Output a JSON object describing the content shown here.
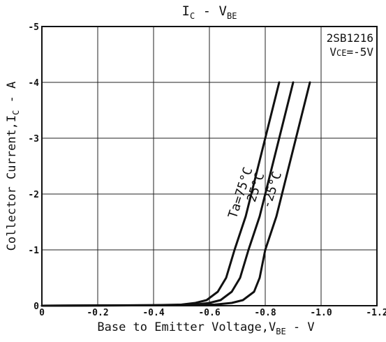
{
  "chart_data": {
    "type": "line",
    "title": {
      "main": "I",
      "sub1": "C",
      "mid": " - V",
      "sub2": "BE"
    },
    "xlabel": {
      "main": "Base to Emitter Voltage,V",
      "sub": "BE",
      "unit": " - V"
    },
    "ylabel": {
      "main": "Collector Current,I",
      "sub": "C",
      "unit": " - A"
    },
    "xlim": [
      0,
      -1.2
    ],
    "ylim": [
      0,
      -5
    ],
    "xticks": [
      0,
      -0.2,
      -0.4,
      -0.6,
      -0.8,
      -1.0,
      -1.2
    ],
    "xtick_labels": [
      "0",
      "-0.2",
      "-0.4",
      "-0.6",
      "-0.8",
      "-1.0",
      "-1.2"
    ],
    "yticks": [
      0,
      -1,
      -2,
      -3,
      -4,
      -5
    ],
    "ytick_labels": [
      "0",
      "-1",
      "-2",
      "-3",
      "-4",
      "-5"
    ],
    "grid": true,
    "annotation": {
      "line1": "2SB1216",
      "line2_main": "V",
      "line2_sub": "CE",
      "line2_rest": "=-5V"
    },
    "series": [
      {
        "name": "Ta=75°C",
        "x": [
          0,
          -0.4,
          -0.5,
          -0.55,
          -0.59,
          -0.63,
          -0.66,
          -0.69,
          -0.73,
          -0.76,
          -0.79,
          -0.82,
          -0.85
        ],
        "y": [
          0,
          -0.01,
          -0.02,
          -0.05,
          -0.1,
          -0.25,
          -0.5,
          -1.0,
          -1.6,
          -2.2,
          -2.8,
          -3.4,
          -4.0
        ]
      },
      {
        "name": "25°C",
        "x": [
          0,
          -0.45,
          -0.55,
          -0.6,
          -0.64,
          -0.68,
          -0.71,
          -0.74,
          -0.78,
          -0.81,
          -0.84,
          -0.87,
          -0.9
        ],
        "y": [
          0,
          -0.01,
          -0.02,
          -0.05,
          -0.1,
          -0.25,
          -0.5,
          -1.0,
          -1.6,
          -2.2,
          -2.8,
          -3.4,
          -4.0
        ]
      },
      {
        "name": "-25°C",
        "x": [
          0,
          -0.5,
          -0.62,
          -0.68,
          -0.72,
          -0.76,
          -0.78,
          -0.8,
          -0.84,
          -0.87,
          -0.9,
          -0.93,
          -0.96
        ],
        "y": [
          0,
          -0.01,
          -0.02,
          -0.05,
          -0.1,
          -0.25,
          -0.5,
          -1.0,
          -1.6,
          -2.2,
          -2.8,
          -3.4,
          -4.0
        ]
      }
    ]
  }
}
